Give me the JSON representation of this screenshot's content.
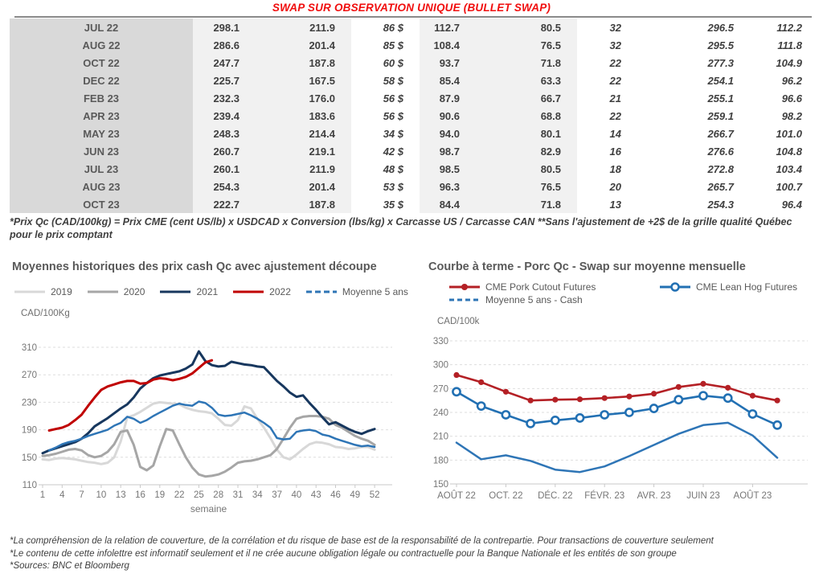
{
  "title": "SWAP SUR OBSERVATION UNIQUE (BULLET SWAP)",
  "table": {
    "rows": [
      [
        "JUL 22",
        "298.1",
        "211.9",
        "86 $",
        "112.7",
        "80.5",
        "32",
        "296.5",
        "112.2"
      ],
      [
        "AUG 22",
        "286.6",
        "201.4",
        "85 $",
        "108.4",
        "76.5",
        "32",
        "295.5",
        "111.8"
      ],
      [
        "OCT 22",
        "247.7",
        "187.8",
        "60 $",
        "93.7",
        "71.8",
        "22",
        "277.3",
        "104.9"
      ],
      [
        "DEC 22",
        "225.7",
        "167.5",
        "58 $",
        "85.4",
        "63.3",
        "22",
        "254.1",
        "96.2"
      ],
      [
        "FEB 23",
        "232.3",
        "176.0",
        "56 $",
        "87.9",
        "66.7",
        "21",
        "255.1",
        "96.6"
      ],
      [
        "APR 23",
        "239.4",
        "183.6",
        "56 $",
        "90.6",
        "68.8",
        "22",
        "259.1",
        "98.2"
      ],
      [
        "MAY 23",
        "248.3",
        "214.4",
        "34 $",
        "94.0",
        "80.1",
        "14",
        "266.7",
        "101.0"
      ],
      [
        "JUN 23",
        "260.7",
        "219.1",
        "42 $",
        "98.7",
        "82.9",
        "16",
        "276.6",
        "104.8"
      ],
      [
        "JUL 23",
        "260.1",
        "211.9",
        "48 $",
        "98.5",
        "80.5",
        "18",
        "272.8",
        "103.4"
      ],
      [
        "AUG 23",
        "254.3",
        "201.4",
        "53 $",
        "96.3",
        "76.5",
        "20",
        "265.7",
        "100.7"
      ],
      [
        "OCT 23",
        "222.7",
        "187.8",
        "35 $",
        "84.4",
        "71.8",
        "13",
        "254.3",
        "96.4"
      ]
    ],
    "colors": {
      "green": "#00a651",
      "blue": "#2e62c4"
    }
  },
  "table_note": "*Prix Qc (CAD/100kg) = Prix CME (cent US/lb) x USDCAD x Conversion (lbs/kg) x Carcasse US / Carcasse CAN **Sans l'ajustement de +2$ de la grille qualité Québec pour le prix comptant",
  "chart_data": [
    {
      "type": "line",
      "title": "Moyennes historiques des prix cash Qc avec ajustement découpe",
      "ylabel": "CAD/100Kg",
      "xlabel": "semaine",
      "ylim": [
        110,
        310
      ],
      "yticks": [
        310,
        270,
        230,
        190,
        150,
        110
      ],
      "xticks": [
        1,
        4,
        7,
        10,
        13,
        16,
        19,
        22,
        25,
        28,
        31,
        34,
        37,
        40,
        43,
        46,
        49,
        52
      ],
      "x_weeks": "1-52",
      "grid": "dashed-horizontal",
      "legend_position": "top",
      "series": [
        {
          "name": "2019",
          "color": "#d8d8d8",
          "dash": null,
          "values": [
            147,
            146,
            148,
            149,
            148,
            147,
            145,
            143,
            142,
            140,
            142,
            150,
            173,
            208,
            211,
            216,
            222,
            228,
            230,
            229,
            228,
            227,
            222,
            219,
            217,
            216,
            214,
            206,
            197,
            196,
            204,
            224,
            221,
            206,
            193,
            178,
            161,
            150,
            147,
            154,
            162,
            169,
            172,
            171,
            169,
            165,
            164,
            162,
            163,
            165,
            165,
            161
          ]
        },
        {
          "name": "2020",
          "color": "#a6a6a6",
          "dash": null,
          "values": [
            152,
            153,
            155,
            158,
            161,
            162,
            160,
            153,
            150,
            152,
            158,
            169,
            187,
            189,
            168,
            136,
            131,
            138,
            166,
            191,
            189,
            169,
            150,
            135,
            125,
            122,
            123,
            125,
            129,
            135,
            142,
            144,
            145,
            147,
            150,
            153,
            162,
            177,
            193,
            206,
            209,
            210,
            210,
            209,
            206,
            197,
            193,
            187,
            181,
            177,
            174,
            168
          ]
        },
        {
          "name": "2021",
          "color": "#17375e",
          "dash": null,
          "values": [
            156,
            160,
            163,
            166,
            169,
            172,
            177,
            185,
            195,
            201,
            207,
            214,
            221,
            227,
            237,
            250,
            258,
            265,
            269,
            271,
            273,
            275,
            279,
            285,
            304,
            290,
            284,
            282,
            283,
            289,
            287,
            285,
            284,
            282,
            281,
            271,
            261,
            253,
            244,
            238,
            240,
            229,
            219,
            208,
            198,
            201,
            196,
            191,
            187,
            184,
            188,
            191
          ]
        },
        {
          "name": "2022",
          "color": "#c00000",
          "dash": null,
          "values": [
            null,
            189,
            191,
            193,
            197,
            204,
            212,
            225,
            237,
            248,
            253,
            256,
            259,
            261,
            261,
            257,
            258,
            263,
            265,
            264,
            262,
            264,
            267,
            272,
            280,
            288,
            291,
            null,
            null,
            null,
            null,
            null,
            null,
            null,
            null,
            null,
            null,
            null,
            null,
            null,
            null,
            null,
            null,
            null,
            null,
            null,
            null,
            null,
            null,
            null,
            null,
            null
          ]
        },
        {
          "name": "Moyenne 5 ans",
          "color": "#2e75b6",
          "dash": "7 4",
          "values": [
            null,
            160,
            164,
            169,
            172,
            174,
            177,
            181,
            184,
            187,
            190,
            196,
            200,
            209,
            206,
            200,
            204,
            210,
            215,
            220,
            225,
            228,
            226,
            225,
            231,
            229,
            222,
            212,
            210,
            211,
            213,
            215,
            211,
            206,
            200,
            193,
            178,
            176,
            177,
            187,
            189,
            190,
            188,
            183,
            181,
            177,
            174,
            171,
            168,
            166,
            167,
            165
          ]
        }
      ]
    },
    {
      "type": "line",
      "title": "Courbe à terme - Porc Qc - Swap sur moyenne mensuelle",
      "ylabel": "CAD/100k",
      "xlabel": "",
      "ylim": [
        150,
        330
      ],
      "yticks": [
        330,
        300,
        270,
        240,
        210,
        180,
        150
      ],
      "tick_labels": [
        "AOÛT 22",
        "",
        "OCT. 22",
        "",
        "DÉC. 22",
        "",
        "FÉVR. 23",
        "",
        "AVR. 23",
        "",
        "JUIN 23",
        "",
        "AOÛT 23",
        ""
      ],
      "grid": "dashed-horizontal",
      "legend_position": "top",
      "series": [
        {
          "name": "CME Pork Cutout Futures",
          "color": "#b42025",
          "dash": null,
          "marker": "dot",
          "values": [
            287,
            278,
            266,
            255,
            256,
            256.5,
            258,
            260,
            263.5,
            272,
            276,
            271,
            261,
            255
          ]
        },
        {
          "name": "CME Lean Hog Futures",
          "color": "#2270b3",
          "dash": null,
          "marker": "circle",
          "values": [
            266,
            248,
            237,
            226,
            230,
            233,
            237,
            240,
            245,
            256,
            261,
            258,
            238,
            224
          ]
        },
        {
          "name": "Moyenne 5 ans - Cash",
          "color": "#2e75b6",
          "dash": "6 4",
          "marker": null,
          "values": [
            202,
            181,
            186,
            179,
            168,
            165,
            172,
            185,
            199,
            213,
            224,
            227,
            211,
            183
          ]
        }
      ]
    }
  ],
  "footnotes": [
    "*La compréhension de la relation de couverture, de la corrélation et du risque de base est de la responsabilité de la contrepartie. Pour transactions de couverture seulement",
    "*Le contenu de cette infolettre est informatif seulement et il ne crée aucune obligation légale ou contractuelle pour la Banque Nationale et les entités de son groupe",
    "*Sources: BNC et Bloomberg"
  ]
}
